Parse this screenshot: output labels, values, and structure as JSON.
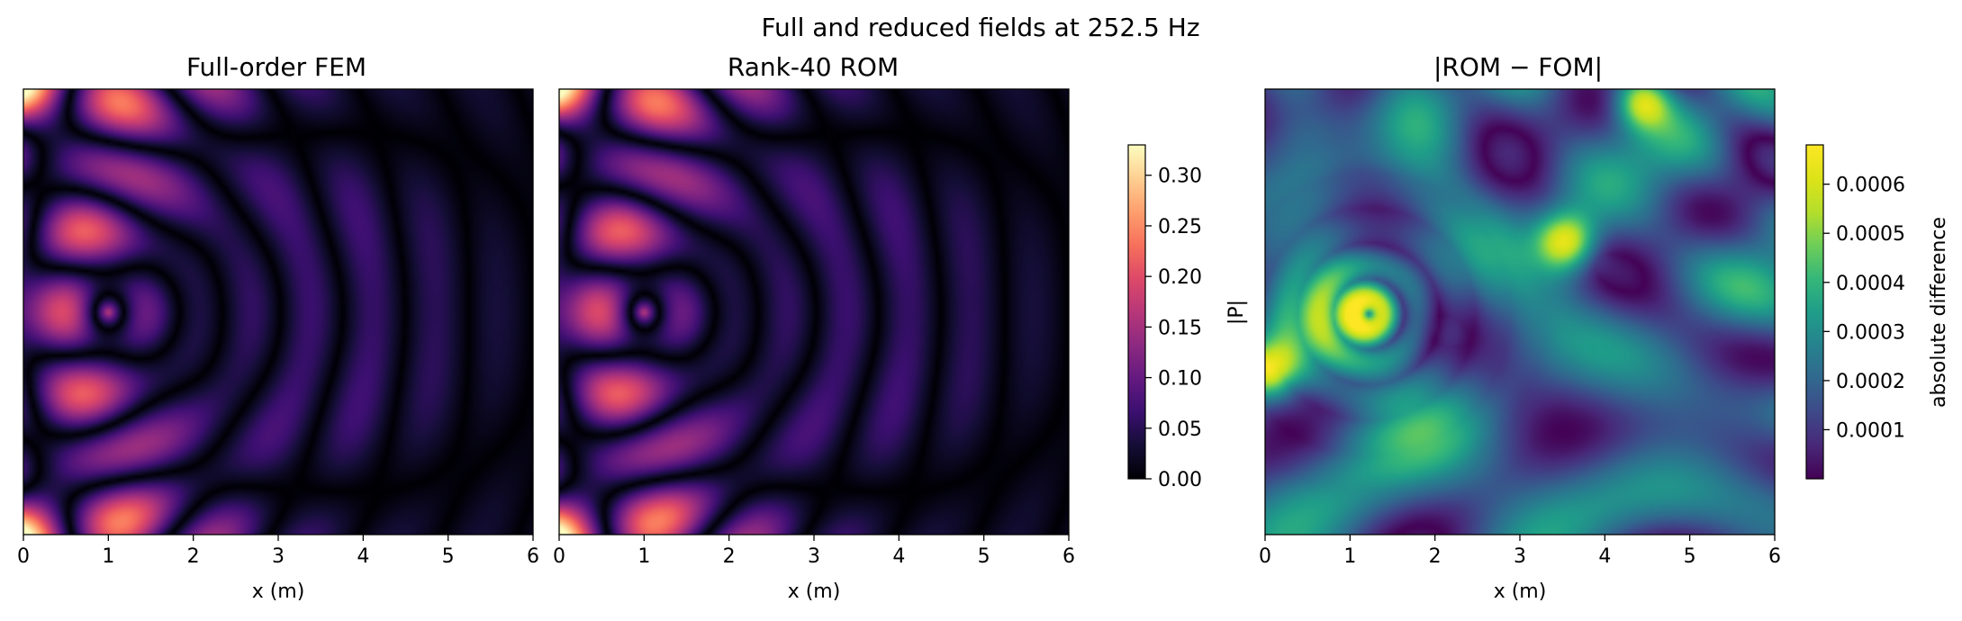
{
  "figure": {
    "suptitle": "Full and reduced fields at 252.5 Hz"
  },
  "chart_data": [
    {
      "type": "heatmap",
      "title": "Full-order FEM",
      "xlabel": "x (m)",
      "ylabel": "",
      "xlim": [
        0,
        6
      ],
      "xticks": [
        "0",
        "1",
        "2",
        "3",
        "4",
        "5",
        "6"
      ],
      "colormap": "magma",
      "field": "|P|",
      "color_range": [
        0,
        0.33
      ],
      "colorbar": {
        "label": "|P|",
        "ticks": [
          "0.00",
          "0.05",
          "0.10",
          "0.15",
          "0.20",
          "0.25",
          "0.30"
        ],
        "tick_values": [
          0,
          0.05,
          0.1,
          0.15,
          0.2,
          0.25,
          0.3
        ]
      }
    },
    {
      "type": "heatmap",
      "title": "Rank-40 ROM",
      "xlabel": "x (m)",
      "ylabel": "",
      "xlim": [
        0,
        6
      ],
      "xticks": [
        "0",
        "1",
        "2",
        "3",
        "4",
        "5",
        "6"
      ],
      "colormap": "magma",
      "color_range": [
        0,
        0.33
      ]
    },
    {
      "type": "heatmap",
      "title": "|ROM − FOM|",
      "xlabel": "x (m)",
      "ylabel": "",
      "xlim": [
        0,
        6
      ],
      "xticks": [
        "0",
        "1",
        "2",
        "3",
        "4",
        "5",
        "6"
      ],
      "colormap": "viridis",
      "color_range": [
        0,
        0.00068
      ],
      "colorbar": {
        "label": "absolute difference",
        "ticks": [
          "0.0001",
          "0.0002",
          "0.0003",
          "0.0004",
          "0.0005",
          "0.0006"
        ],
        "tick_values": [
          0.0001,
          0.0002,
          0.0003,
          0.0004,
          0.0005,
          0.0006
        ]
      }
    }
  ]
}
